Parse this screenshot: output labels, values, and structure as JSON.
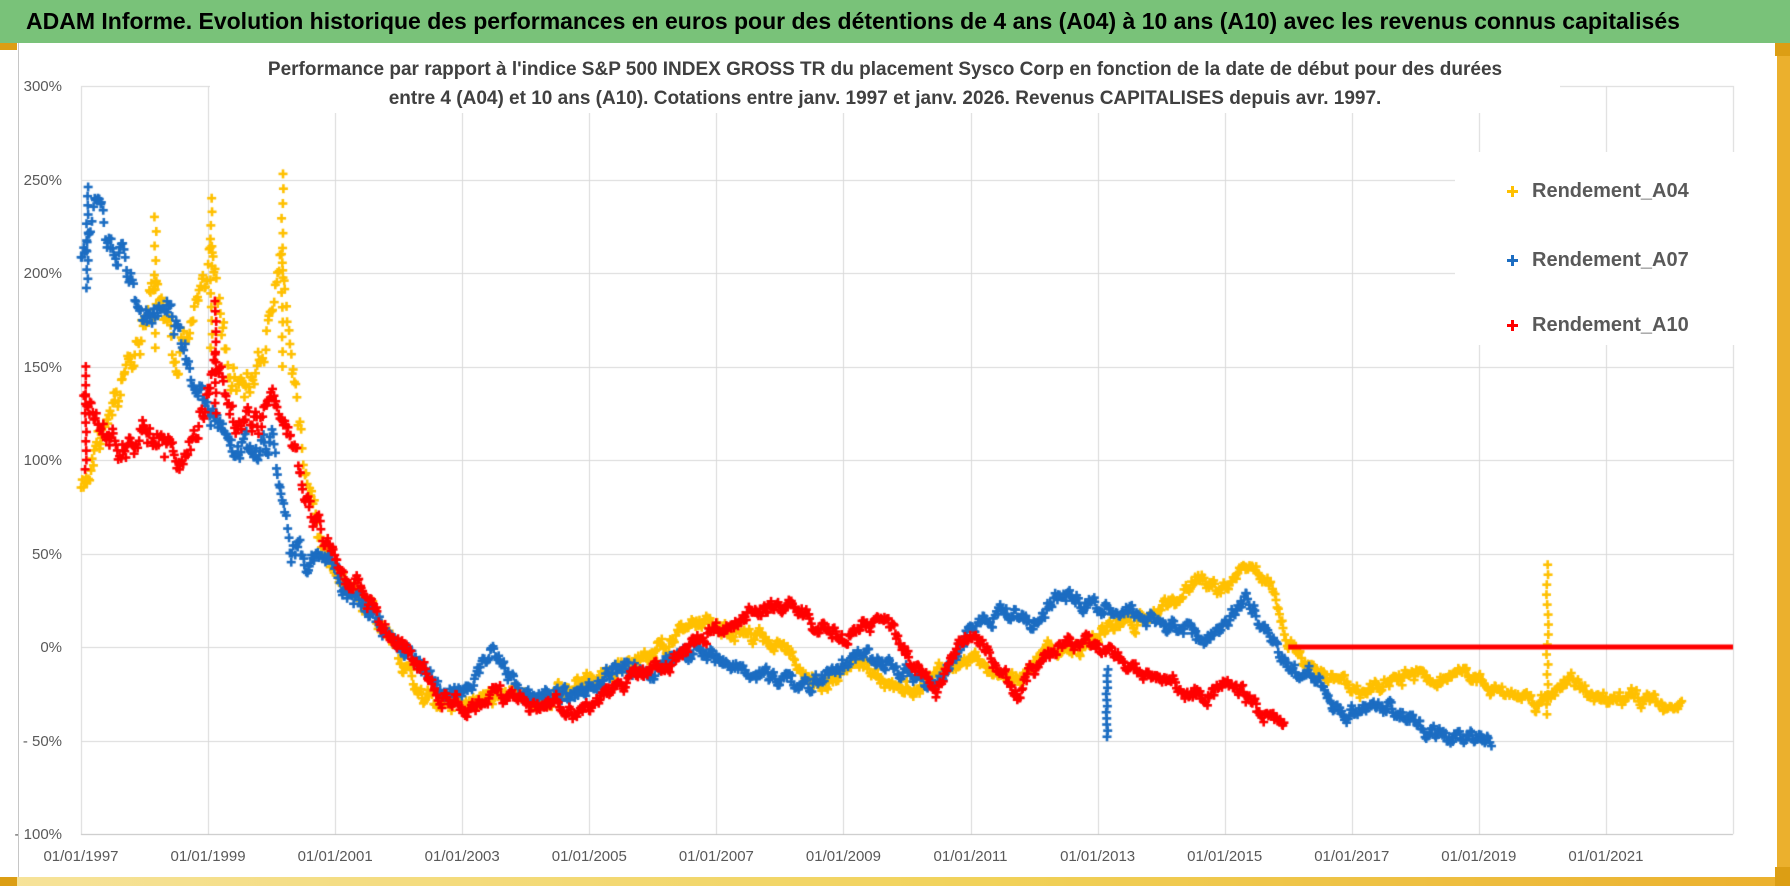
{
  "header": {
    "title": "ADAM Informe. Evolution historique des performances en euros pour des détentions de 4 ans (A04) à 10 ans (A10) avec les revenus connus capitalisés"
  },
  "chart": {
    "title_line1": "Performance par rapport à l'indice S&P 500 INDEX GROSS TR  du placement Sysco Corp en fonction de la date de début pour des durées",
    "title_line2": "entre 4 (A04) et 10 ans (A10). Cotations entre janv. 1997 et janv. 2026. Revenus CAPITALISES depuis avr. 1997."
  },
  "legend": {
    "items": [
      {
        "label": "Rendement_A04",
        "color": "#FFC000",
        "marker": "plus"
      },
      {
        "label": "Rendement_A07",
        "color": "#1C6DC2",
        "marker": "plus"
      },
      {
        "label": "Rendement_A10",
        "color": "#FF0000",
        "marker": "plus"
      }
    ]
  },
  "chart_data": {
    "type": "scatter",
    "title": "Performance par rapport à l'indice S&P 500 INDEX GROSS TR du placement Sysco Corp en fonction de la date de début pour des durées entre 4 (A04) et 10 ans (A10). Cotations entre janv. 1997 et janv. 2026. Revenus CAPITALISES depuis avr. 1997.",
    "grid": true,
    "legend_position": "right-top",
    "marker": "plus",
    "colors": {
      "grid": "#D9D9D9",
      "axis_text": "#595959",
      "title_text": "#404040"
    },
    "x_axis": {
      "type": "date-years",
      "range": [
        1997.0,
        2023.0
      ],
      "ticks": [
        {
          "year": 1997,
          "label": "01/01/1997"
        },
        {
          "year": 1999,
          "label": "01/01/1999"
        },
        {
          "year": 2001,
          "label": "01/01/2001"
        },
        {
          "year": 2003,
          "label": "01/01/2003"
        },
        {
          "year": 2005,
          "label": "01/01/2005"
        },
        {
          "year": 2007,
          "label": "01/01/2007"
        },
        {
          "year": 2009,
          "label": "01/01/2009"
        },
        {
          "year": 2011,
          "label": "01/01/2011"
        },
        {
          "year": 2013,
          "label": "01/01/2013"
        },
        {
          "year": 2015,
          "label": "01/01/2015"
        },
        {
          "year": 2017,
          "label": "01/01/2017"
        },
        {
          "year": 2019,
          "label": "01/01/2019"
        },
        {
          "year": 2021,
          "label": "01/01/2021"
        }
      ]
    },
    "y_axis": {
      "unit": "%",
      "range": [
        -100,
        300
      ],
      "ticks": [
        {
          "value": 300,
          "label": "300%"
        },
        {
          "value": 250,
          "label": "250%"
        },
        {
          "value": 200,
          "label": "200%"
        },
        {
          "value": 150,
          "label": "150%"
        },
        {
          "value": 100,
          "label": "100%"
        },
        {
          "value": 50,
          "label": "50%"
        },
        {
          "value": 0,
          "label": "0%"
        },
        {
          "value": -50,
          "label": "- 50%"
        },
        {
          "value": -100,
          "label": "- 100%"
        }
      ]
    },
    "sampling_note": "weekly start dates; values are % performance vs index; series shapes encoded as center-path anchors [yearFraction, percent] with band = half-width of scatter around the path",
    "series": [
      {
        "name": "Rendement_A04",
        "color": "#FFC000",
        "seed": 11,
        "step_years": 0.01923,
        "anchors": [
          [
            1997.0,
            85
          ],
          [
            1997.3,
            110
          ],
          [
            1997.6,
            135
          ],
          [
            1997.9,
            165
          ],
          [
            1998.15,
            200
          ],
          [
            1998.5,
            152
          ],
          [
            1998.8,
            175
          ],
          [
            1999.05,
            215
          ],
          [
            1999.3,
            160
          ],
          [
            1999.6,
            140
          ],
          [
            1999.9,
            175
          ],
          [
            2000.15,
            215
          ],
          [
            2000.45,
            120
          ],
          [
            2000.8,
            62
          ],
          [
            2001.1,
            45
          ],
          [
            2001.4,
            25
          ],
          [
            2001.8,
            5
          ],
          [
            2002.2,
            -15
          ],
          [
            2002.6,
            -28
          ],
          [
            2003.0,
            -35
          ],
          [
            2003.4,
            -28
          ],
          [
            2003.8,
            -26
          ],
          [
            2004.2,
            -32
          ],
          [
            2004.6,
            -26
          ],
          [
            2005.0,
            -20
          ],
          [
            2005.4,
            -12
          ],
          [
            2005.8,
            -8
          ],
          [
            2006.2,
            -2
          ],
          [
            2006.6,
            8
          ],
          [
            2007.0,
            10
          ],
          [
            2007.4,
            6
          ],
          [
            2007.8,
            2
          ],
          [
            2008.2,
            -8
          ],
          [
            2008.6,
            -16
          ],
          [
            2009.0,
            -10
          ],
          [
            2009.4,
            -9
          ],
          [
            2009.8,
            -20
          ],
          [
            2010.2,
            -22
          ],
          [
            2010.6,
            -12
          ],
          [
            2011.0,
            -6
          ],
          [
            2011.4,
            -12
          ],
          [
            2011.8,
            -16
          ],
          [
            2012.2,
            -4
          ],
          [
            2012.6,
            2
          ],
          [
            2013.0,
            6
          ],
          [
            2013.4,
            12
          ],
          [
            2013.8,
            16
          ],
          [
            2014.2,
            25
          ],
          [
            2014.6,
            38
          ],
          [
            2014.9,
            32
          ],
          [
            2015.2,
            42
          ],
          [
            2015.45,
            47
          ],
          [
            2015.7,
            35
          ],
          [
            2016.0,
            5
          ],
          [
            2016.3,
            -12
          ],
          [
            2016.7,
            -18
          ],
          [
            2017.1,
            -22
          ],
          [
            2017.5,
            -18
          ],
          [
            2017.9,
            -15
          ],
          [
            2018.3,
            -20
          ],
          [
            2018.7,
            -12
          ],
          [
            2019.1,
            -25
          ],
          [
            2019.5,
            -30
          ],
          [
            2019.9,
            -33
          ],
          [
            2020.1,
            -22
          ],
          [
            2020.4,
            -15
          ],
          [
            2020.8,
            -26
          ],
          [
            2021.1,
            -32
          ],
          [
            2021.4,
            -26
          ],
          [
            2021.8,
            -30
          ],
          [
            2022.0,
            -36
          ],
          [
            2022.2,
            -33
          ]
        ],
        "band_anchors": [
          [
            1997,
            14
          ],
          [
            2000.3,
            16
          ],
          [
            2001,
            10
          ],
          [
            2003,
            7
          ],
          [
            2016,
            6
          ],
          [
            2022,
            6
          ]
        ],
        "streaks": [
          {
            "year": 1998.17,
            "from": 160,
            "to": 230,
            "n": 10
          },
          {
            "year": 1999.05,
            "from": 160,
            "to": 240,
            "n": 12
          },
          {
            "year": 2000.17,
            "from": 150,
            "to": 253,
            "n": 14
          },
          {
            "year": 2020.08,
            "from": -36,
            "to": 44,
            "n": 16
          }
        ]
      },
      {
        "name": "Rendement_A07",
        "color": "#1C6DC2",
        "seed": 23,
        "step_years": 0.01923,
        "anchors": [
          [
            1997.0,
            215
          ],
          [
            1997.25,
            228
          ],
          [
            1997.5,
            212
          ],
          [
            1997.8,
            196
          ],
          [
            1998.1,
            172
          ],
          [
            1998.35,
            186
          ],
          [
            1998.65,
            155
          ],
          [
            1999.0,
            125
          ],
          [
            1999.35,
            108
          ],
          [
            1999.7,
            100
          ],
          [
            2000.0,
            112
          ],
          [
            2000.3,
            56
          ],
          [
            2000.6,
            50
          ],
          [
            2000.9,
            56
          ],
          [
            2001.2,
            30
          ],
          [
            2001.5,
            18
          ],
          [
            2001.9,
            2
          ],
          [
            2002.3,
            -12
          ],
          [
            2002.7,
            -25
          ],
          [
            2003.1,
            -22
          ],
          [
            2003.45,
            -8
          ],
          [
            2003.8,
            -20
          ],
          [
            2004.2,
            -27
          ],
          [
            2004.6,
            -30
          ],
          [
            2005.0,
            -22
          ],
          [
            2005.4,
            -12
          ],
          [
            2005.8,
            -16
          ],
          [
            2006.2,
            -10
          ],
          [
            2006.6,
            -4
          ],
          [
            2007.0,
            -2
          ],
          [
            2007.3,
            -6
          ],
          [
            2007.7,
            -10
          ],
          [
            2008.1,
            -16
          ],
          [
            2008.5,
            -20
          ],
          [
            2008.9,
            -12
          ],
          [
            2009.3,
            -4
          ],
          [
            2009.7,
            -8
          ],
          [
            2010.1,
            -12
          ],
          [
            2010.5,
            -16
          ],
          [
            2010.9,
            8
          ],
          [
            2011.3,
            18
          ],
          [
            2011.7,
            22
          ],
          [
            2012.0,
            15
          ],
          [
            2012.4,
            26
          ],
          [
            2012.8,
            24
          ],
          [
            2013.15,
            18
          ],
          [
            2013.5,
            20
          ],
          [
            2013.9,
            12
          ],
          [
            2014.3,
            8
          ],
          [
            2014.7,
            4
          ],
          [
            2015.0,
            10
          ],
          [
            2015.35,
            28
          ],
          [
            2015.6,
            10
          ],
          [
            2015.9,
            -4
          ],
          [
            2016.2,
            -15
          ],
          [
            2016.6,
            -22
          ],
          [
            2016.9,
            -35
          ],
          [
            2017.2,
            -28
          ],
          [
            2017.6,
            -30
          ],
          [
            2018.0,
            -42
          ],
          [
            2018.4,
            -48
          ],
          [
            2018.7,
            -45
          ],
          [
            2019.0,
            -50
          ],
          [
            2019.2,
            -51
          ]
        ],
        "band_anchors": [
          [
            1997,
            13
          ],
          [
            1999,
            12
          ],
          [
            2001,
            9
          ],
          [
            2003,
            7
          ],
          [
            2019,
            6
          ]
        ],
        "streaks": [
          {
            "year": 1997.1,
            "from": 192,
            "to": 246,
            "n": 12
          },
          {
            "year": 2013.15,
            "from": -48,
            "to": -12,
            "n": 12
          }
        ]
      },
      {
        "name": "Rendement_A10",
        "color": "#FF0000",
        "seed": 37,
        "step_years": 0.01923,
        "anchors": [
          [
            1997.05,
            132
          ],
          [
            1997.3,
            108
          ],
          [
            1997.6,
            112
          ],
          [
            1997.9,
            118
          ],
          [
            1998.2,
            105
          ],
          [
            1998.5,
            98
          ],
          [
            1998.8,
            120
          ],
          [
            1999.1,
            158
          ],
          [
            1999.4,
            120
          ],
          [
            1999.7,
            112
          ],
          [
            2000.0,
            130
          ],
          [
            2000.3,
            105
          ],
          [
            2000.6,
            75
          ],
          [
            2000.9,
            52
          ],
          [
            2001.2,
            38
          ],
          [
            2001.5,
            25
          ],
          [
            2001.9,
            8
          ],
          [
            2002.3,
            -12
          ],
          [
            2002.7,
            -30
          ],
          [
            2003.1,
            -35
          ],
          [
            2003.5,
            -25
          ],
          [
            2003.9,
            -28
          ],
          [
            2004.3,
            -30
          ],
          [
            2004.7,
            -34
          ],
          [
            2005.1,
            -28
          ],
          [
            2005.5,
            -18
          ],
          [
            2005.9,
            -10
          ],
          [
            2006.3,
            -4
          ],
          [
            2006.7,
            4
          ],
          [
            2007.1,
            12
          ],
          [
            2007.5,
            18
          ],
          [
            2007.9,
            22
          ],
          [
            2008.2,
            26
          ],
          [
            2008.6,
            16
          ],
          [
            2009.0,
            10
          ],
          [
            2009.4,
            12
          ],
          [
            2009.8,
            14
          ],
          [
            2010.2,
            -14
          ],
          [
            2010.45,
            -25
          ],
          [
            2010.8,
            0
          ],
          [
            2011.1,
            8
          ],
          [
            2011.5,
            -10
          ],
          [
            2011.75,
            -20
          ],
          [
            2012.1,
            -8
          ],
          [
            2012.5,
            6
          ],
          [
            2012.8,
            4
          ],
          [
            2013.1,
            -4
          ],
          [
            2013.5,
            -12
          ],
          [
            2013.9,
            -18
          ],
          [
            2014.3,
            -20
          ],
          [
            2014.7,
            -26
          ],
          [
            2015.0,
            -22
          ],
          [
            2015.3,
            -25
          ],
          [
            2015.6,
            -33
          ],
          [
            2015.95,
            -42
          ]
        ],
        "band_anchors": [
          [
            1997,
            14
          ],
          [
            2000,
            12
          ],
          [
            2001,
            9
          ],
          [
            2003,
            7
          ],
          [
            2016,
            6
          ]
        ],
        "streaks": [
          {
            "year": 1997.07,
            "from": 95,
            "to": 150,
            "n": 12
          },
          {
            "year": 1999.12,
            "from": 125,
            "to": 185,
            "n": 12
          }
        ],
        "flat_segment": {
          "from_year": 2016.0,
          "to_year": 2023.0,
          "value": 0,
          "thickness_px": 5
        }
      }
    ]
  }
}
